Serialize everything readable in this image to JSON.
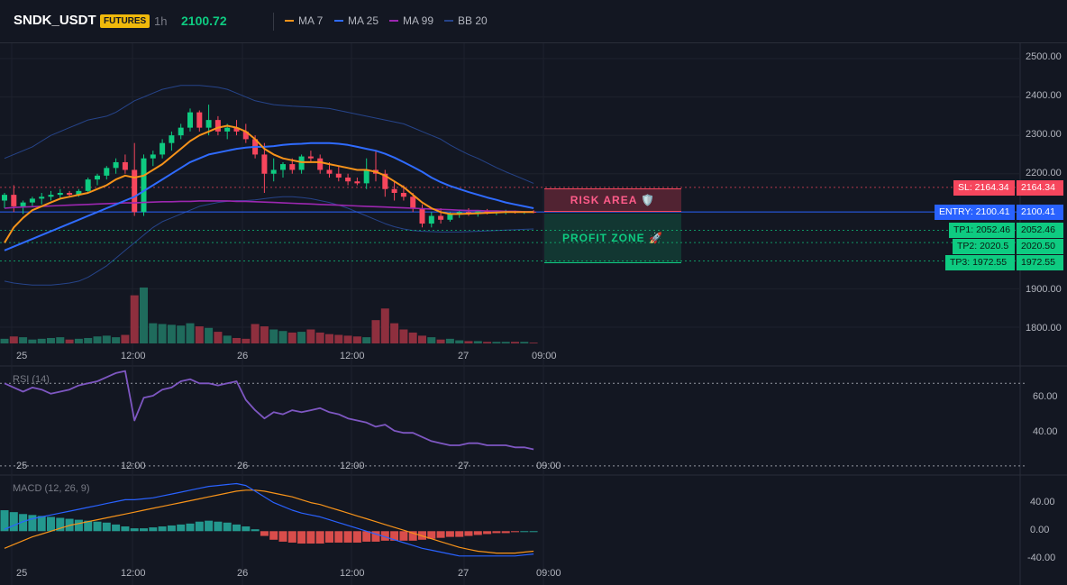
{
  "header": {
    "symbol": "SNDK_USDT",
    "badge": "FUTURES",
    "timeframe": "1h",
    "price": "2100.72",
    "legend": [
      {
        "label": "MA 7",
        "color": "#f7931a"
      },
      {
        "label": "MA 25",
        "color": "#2f6bff"
      },
      {
        "label": "MA 99",
        "color": "#9c27b0"
      },
      {
        "label": "BB 20",
        "color": "#26448a"
      }
    ]
  },
  "colors": {
    "up": "#0ecb81",
    "down": "#f6465d",
    "vol_up": "#1f6b5c",
    "vol_down": "#8e2f3e",
    "rsi": "#7e57c2",
    "macd": "#2962ff",
    "signal": "#f7931a"
  },
  "zones": {
    "risk": "RISK AREA 🛡️",
    "profit": "PROFIT ZONE 🚀"
  },
  "levels": {
    "sl": {
      "label": "SL: 2164.34",
      "value": "2164.34"
    },
    "entry": {
      "label": "ENTRY: 2100.41",
      "value": "2100.41"
    },
    "tp1": {
      "label": "TP1: 2052.46",
      "value": "2052.46"
    },
    "tp2": {
      "label": "TP2: 2020.5",
      "value": "2020.50"
    },
    "tp3": {
      "label": "TP3: 1972.55",
      "value": "1972.55"
    }
  },
  "time_labels": [
    "25",
    "12:00",
    "26",
    "12:00",
    "27",
    "09:00"
  ],
  "rsi_label": "RSI (14)",
  "macd_label": "MACD (12, 26, 9)",
  "chart_data": [
    {
      "type": "candlestick",
      "title": "SNDK_USDT",
      "y_ticks": [
        "2500.00",
        "2400.00",
        "2300.00",
        "2200.00",
        "1900.00",
        "1800.00"
      ],
      "ylim": [
        1760,
        2540
      ],
      "candles": [
        [
          2130,
          2150,
          2110,
          2145
        ],
        [
          2145,
          2170,
          2100,
          2115
        ],
        [
          2115,
          2130,
          2095,
          2125
        ],
        [
          2125,
          2140,
          2115,
          2135
        ],
        [
          2135,
          2150,
          2120,
          2140
        ],
        [
          2140,
          2155,
          2130,
          2145
        ],
        [
          2145,
          2160,
          2135,
          2150
        ],
        [
          2150,
          2155,
          2140,
          2145
        ],
        [
          2145,
          2160,
          2140,
          2155
        ],
        [
          2155,
          2190,
          2150,
          2185
        ],
        [
          2185,
          2200,
          2170,
          2195
        ],
        [
          2195,
          2220,
          2185,
          2215
        ],
        [
          2215,
          2240,
          2200,
          2230
        ],
        [
          2230,
          2250,
          2200,
          2210
        ],
        [
          2210,
          2280,
          2090,
          2100
        ],
        [
          2100,
          2250,
          2090,
          2240
        ],
        [
          2240,
          2260,
          2220,
          2250
        ],
        [
          2250,
          2290,
          2240,
          2280
        ],
        [
          2280,
          2310,
          2260,
          2300
        ],
        [
          2300,
          2330,
          2290,
          2320
        ],
        [
          2320,
          2370,
          2310,
          2360
        ],
        [
          2360,
          2365,
          2310,
          2320
        ],
        [
          2320,
          2380,
          2300,
          2340
        ],
        [
          2340,
          2350,
          2300,
          2310
        ],
        [
          2310,
          2330,
          2290,
          2320
        ],
        [
          2320,
          2340,
          2300,
          2310
        ],
        [
          2310,
          2330,
          2280,
          2290
        ],
        [
          2290,
          2300,
          2240,
          2250
        ],
        [
          2250,
          2280,
          2150,
          2200
        ],
        [
          2200,
          2240,
          2180,
          2210
        ],
        [
          2210,
          2230,
          2190,
          2225
        ],
        [
          2225,
          2240,
          2200,
          2210
        ],
        [
          2210,
          2250,
          2200,
          2245
        ],
        [
          2245,
          2260,
          2230,
          2240
        ],
        [
          2240,
          2250,
          2200,
          2210
        ],
        [
          2210,
          2230,
          2190,
          2200
        ],
        [
          2200,
          2220,
          2180,
          2190
        ],
        [
          2190,
          2200,
          2170,
          2180
        ],
        [
          2180,
          2190,
          2170,
          2175
        ],
        [
          2175,
          2240,
          2160,
          2210
        ],
        [
          2210,
          2260,
          2180,
          2200
        ],
        [
          2200,
          2210,
          2140,
          2160
        ],
        [
          2160,
          2180,
          2130,
          2150
        ],
        [
          2150,
          2170,
          2130,
          2140
        ],
        [
          2140,
          2150,
          2100,
          2110
        ],
        [
          2110,
          2120,
          2060,
          2070
        ],
        [
          2070,
          2100,
          2060,
          2090
        ],
        [
          2090,
          2110,
          2070,
          2080
        ],
        [
          2080,
          2100,
          2075,
          2095
        ],
        [
          2095,
          2105,
          2085,
          2100
        ],
        [
          2100,
          2110,
          2090,
          2095
        ],
        [
          2095,
          2105,
          2088,
          2102
        ],
        [
          2102,
          2108,
          2094,
          2098
        ],
        [
          2098,
          2104,
          2092,
          2100
        ],
        [
          2100,
          2106,
          2094,
          2101
        ],
        [
          2101,
          2104,
          2096,
          2099
        ],
        [
          2099,
          2103,
          2095,
          2101
        ],
        [
          2101,
          2105,
          2097,
          2100
        ]
      ],
      "ma7": [
        2020,
        2060,
        2085,
        2105,
        2115,
        2125,
        2135,
        2140,
        2145,
        2150,
        2160,
        2170,
        2185,
        2195,
        2190,
        2195,
        2210,
        2225,
        2245,
        2265,
        2285,
        2300,
        2310,
        2320,
        2325,
        2320,
        2310,
        2290,
        2265,
        2250,
        2240,
        2235,
        2230,
        2230,
        2230,
        2225,
        2220,
        2215,
        2210,
        2210,
        2205,
        2195,
        2180,
        2165,
        2145,
        2125,
        2110,
        2100,
        2095,
        2095,
        2096,
        2097,
        2098,
        2099,
        2100,
        2100,
        2100,
        2100
      ],
      "ma25": [
        2000,
        2010,
        2020,
        2030,
        2040,
        2050,
        2060,
        2070,
        2080,
        2090,
        2100,
        2110,
        2120,
        2130,
        2140,
        2155,
        2170,
        2185,
        2200,
        2215,
        2230,
        2240,
        2250,
        2255,
        2260,
        2265,
        2268,
        2270,
        2270,
        2272,
        2275,
        2277,
        2278,
        2280,
        2280,
        2280,
        2278,
        2275,
        2270,
        2265,
        2260,
        2252,
        2242,
        2230,
        2218,
        2205,
        2190,
        2178,
        2168,
        2160,
        2152,
        2145,
        2138,
        2132,
        2125,
        2120,
        2115,
        2110
      ],
      "ma99": [
        2110,
        2112,
        2113,
        2114,
        2115,
        2116,
        2117,
        2118,
        2119,
        2120,
        2121,
        2122,
        2123,
        2124,
        2124,
        2125,
        2126,
        2127,
        2127,
        2128,
        2128,
        2129,
        2129,
        2129,
        2129,
        2128,
        2128,
        2127,
        2126,
        2125,
        2124,
        2123,
        2122,
        2121,
        2120,
        2119,
        2118,
        2117,
        2116,
        2115,
        2114,
        2113,
        2112,
        2111,
        2110,
        2109,
        2108,
        2107,
        2106,
        2105,
        2104,
        2104,
        2103,
        2103,
        2102,
        2102,
        2101,
        2101
      ],
      "bb_upper": [
        2240,
        2250,
        2260,
        2270,
        2285,
        2300,
        2310,
        2320,
        2330,
        2340,
        2345,
        2350,
        2360,
        2375,
        2390,
        2400,
        2410,
        2420,
        2425,
        2430,
        2430,
        2430,
        2428,
        2425,
        2420,
        2410,
        2400,
        2390,
        2385,
        2380,
        2378,
        2376,
        2375,
        2374,
        2372,
        2370,
        2365,
        2360,
        2355,
        2350,
        2345,
        2340,
        2335,
        2330,
        2320,
        2310,
        2300,
        2290,
        2275,
        2262,
        2250,
        2240,
        2228,
        2216,
        2205,
        2195,
        2185,
        2175
      ],
      "bb_lower": [
        1920,
        1915,
        1912,
        1910,
        1910,
        1910,
        1912,
        1915,
        1920,
        1930,
        1945,
        1960,
        1980,
        2000,
        2020,
        2040,
        2060,
        2075,
        2085,
        2095,
        2105,
        2115,
        2120,
        2125,
        2128,
        2130,
        2130,
        2132,
        2135,
        2138,
        2140,
        2140,
        2138,
        2135,
        2130,
        2125,
        2118,
        2110,
        2100,
        2090,
        2080,
        2070,
        2062,
        2056,
        2052,
        2050,
        2049,
        2048,
        2048,
        2048,
        2049,
        2050,
        2051,
        2052,
        2053,
        2054,
        2055,
        2056
      ],
      "volume": [
        6,
        9,
        8,
        5,
        6,
        7,
        8,
        5,
        6,
        7,
        9,
        10,
        8,
        11,
        62,
        72,
        26,
        25,
        24,
        23,
        26,
        22,
        20,
        15,
        10,
        7,
        6,
        25,
        22,
        18,
        16,
        14,
        15,
        18,
        14,
        12,
        11,
        10,
        9,
        8,
        30,
        45,
        26,
        18,
        14,
        10,
        8,
        5,
        6,
        4,
        3,
        3,
        2,
        2,
        2,
        2,
        2,
        1
      ]
    },
    {
      "type": "line",
      "title": "RSI (14)",
      "y_ticks": [
        "60.00",
        "40.00"
      ],
      "ylim": [
        26,
        78
      ],
      "values": [
        70,
        68,
        66,
        68,
        67,
        65,
        66,
        67,
        69,
        70,
        71,
        73,
        75,
        76,
        52,
        63,
        64,
        67,
        68,
        71,
        72,
        70,
        70,
        69,
        70,
        71,
        62,
        57,
        53,
        56,
        55,
        57,
        56,
        57,
        58,
        56,
        55,
        53,
        52,
        51,
        49,
        50,
        47,
        46,
        46,
        44,
        42,
        41,
        40,
        40,
        41,
        41,
        40,
        40,
        40,
        39,
        39,
        38
      ],
      "ref_lines": [
        70,
        30
      ]
    },
    {
      "type": "bar",
      "title": "MACD (12, 26, 9)",
      "y_ticks": [
        "40.00",
        "0.00",
        "-40.00"
      ],
      "ylim": [
        -48,
        58
      ],
      "histogram": [
        22,
        20,
        18,
        17,
        16,
        15,
        14,
        13,
        12,
        11,
        10,
        9,
        7,
        5,
        3,
        3,
        4,
        5,
        6,
        7,
        8,
        10,
        11,
        10,
        9,
        7,
        5,
        2,
        -5,
        -9,
        -11,
        -12,
        -13,
        -13,
        -13,
        -12,
        -12,
        -12,
        -12,
        -11,
        -11,
        -10,
        -10,
        -10,
        -10,
        -9,
        -8,
        -7,
        -6,
        -6,
        -5,
        -4,
        -3,
        -2,
        -2,
        -1,
        0,
        0
      ],
      "macd": [
        2,
        6,
        10,
        13,
        15,
        17,
        19,
        21,
        23,
        25,
        27,
        29,
        31,
        33,
        33,
        34,
        35,
        37,
        39,
        41,
        43,
        45,
        47,
        48,
        49,
        50,
        48,
        42,
        36,
        30,
        26,
        22,
        19,
        17,
        15,
        12,
        9,
        6,
        3,
        0,
        -3,
        -6,
        -9,
        -12,
        -15,
        -18,
        -20,
        -22,
        -24,
        -26,
        -26,
        -26,
        -26,
        -26,
        -26,
        -26,
        -25,
        -24
      ],
      "signal": [
        -18,
        -14,
        -10,
        -6,
        -3,
        0,
        3,
        6,
        8,
        10,
        12,
        14,
        16,
        18,
        20,
        22,
        24,
        26,
        28,
        30,
        32,
        34,
        36,
        38,
        40,
        42,
        43,
        43,
        42,
        40,
        38,
        36,
        33,
        30,
        28,
        25,
        22,
        19,
        16,
        13,
        10,
        7,
        4,
        1,
        -2,
        -5,
        -8,
        -11,
        -14,
        -17,
        -19,
        -21,
        -22,
        -23,
        -23,
        -23,
        -22,
        -21
      ]
    }
  ]
}
